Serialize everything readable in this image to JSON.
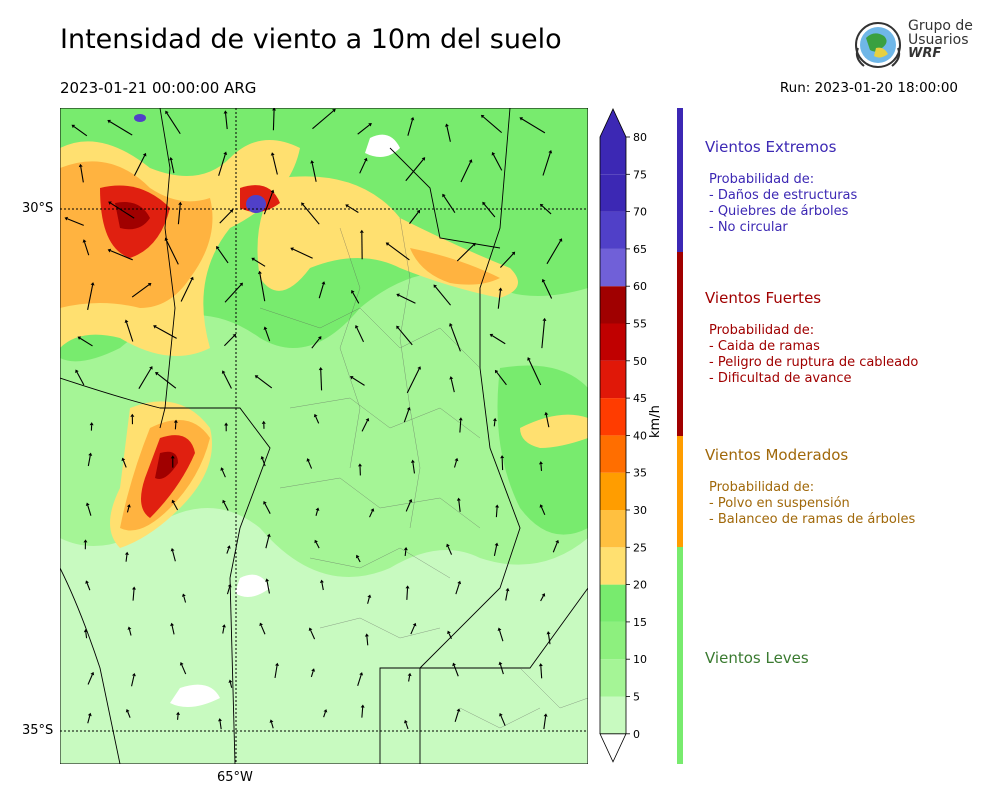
{
  "header": {
    "title": "Intensidad de viento a 10m del suelo",
    "valid_time": "2023-01-21 00:00:00 ARG",
    "run_time": "Run: 2023-01-20 18:00:00"
  },
  "logo": {
    "line1": "Grupo de",
    "line2": "Usuarios",
    "line3": "WRF"
  },
  "map": {
    "lat_labels": [
      "30°S",
      "35°S"
    ],
    "lon_labels": [
      "65°W"
    ],
    "colors": {
      "background": "#c8fac0",
      "light_green": "#a5f596",
      "green": "#78eb6e",
      "yellow": "#ffe070",
      "orange": "#ffb340",
      "deep_orange": "#ff7a1a",
      "red": "#e02010",
      "dark_red": "#a00000",
      "purple": "#5040c8"
    }
  },
  "colorbar": {
    "units": "km/h",
    "ticks": [
      "0",
      "5",
      "10",
      "15",
      "20",
      "25",
      "30",
      "35",
      "40",
      "45",
      "50",
      "55",
      "60",
      "65",
      "70",
      "75",
      "80"
    ],
    "colors": [
      "#ffffff",
      "#c8fac0",
      "#a5f596",
      "#8df07e",
      "#78eb6e",
      "#ffe070",
      "#ffc040",
      "#ff9d00",
      "#ff6e00",
      "#ff3c00",
      "#e01808",
      "#c00000",
      "#a00000",
      "#7060d8",
      "#5040c8",
      "#3c28b4",
      "#3c28b4"
    ]
  },
  "categories": [
    {
      "title": "Vientos Extremos",
      "color": "#3c28b4",
      "lines": [
        "Probabilidad de:",
        "- Daños de estructuras",
        "- Quiebres de árboles",
        "- No circular"
      ]
    },
    {
      "title": "Vientos Fuertes",
      "color": "#a00000",
      "lines": [
        "Probabilidad de:",
        "- Caida de ramas",
        "- Peligro de ruptura de cableado",
        "- Dificultad de avance"
      ]
    },
    {
      "title": "Vientos Moderados",
      "color": "#a0680a",
      "lines": [
        "Probabilidad de:",
        "- Polvo en suspensión",
        "- Balanceo de ramas de árboles"
      ]
    },
    {
      "title": "Vientos Leves",
      "color": "#3a7a30",
      "lines": []
    }
  ]
}
